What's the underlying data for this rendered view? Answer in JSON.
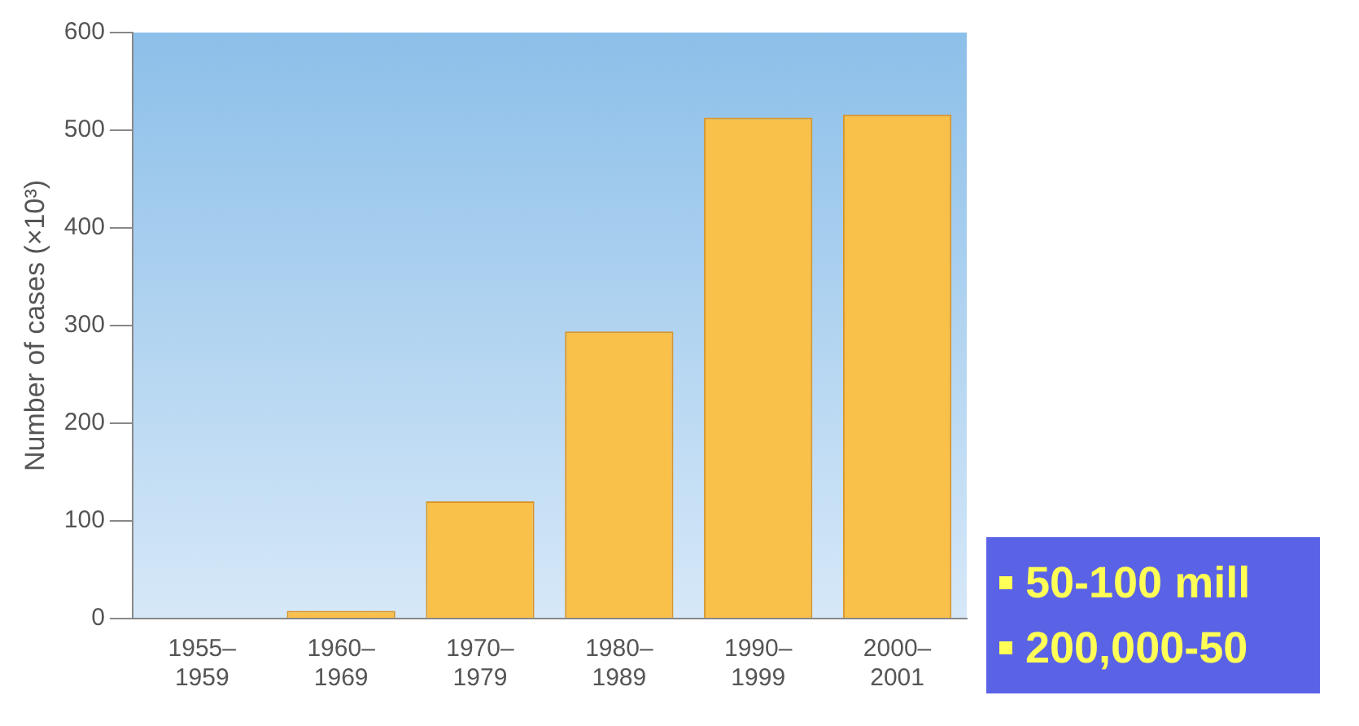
{
  "chart_data": {
    "type": "bar",
    "ylabel": "Number of cases (×10³)",
    "categories": [
      "1955–\n1959",
      "1960–\n1969",
      "1970–\n1979",
      "1980–\n1989",
      "1990–\n1999",
      "2000–\n2001"
    ],
    "values": [
      0,
      8,
      120,
      294,
      513,
      516
    ],
    "color": "#f9c04a",
    "ylim": [
      0,
      600
    ],
    "yticks": [
      0,
      100,
      200,
      300,
      400,
      500,
      600
    ],
    "grid": false,
    "annotations": [
      "50-100 mill",
      "200,000-50"
    ]
  }
}
